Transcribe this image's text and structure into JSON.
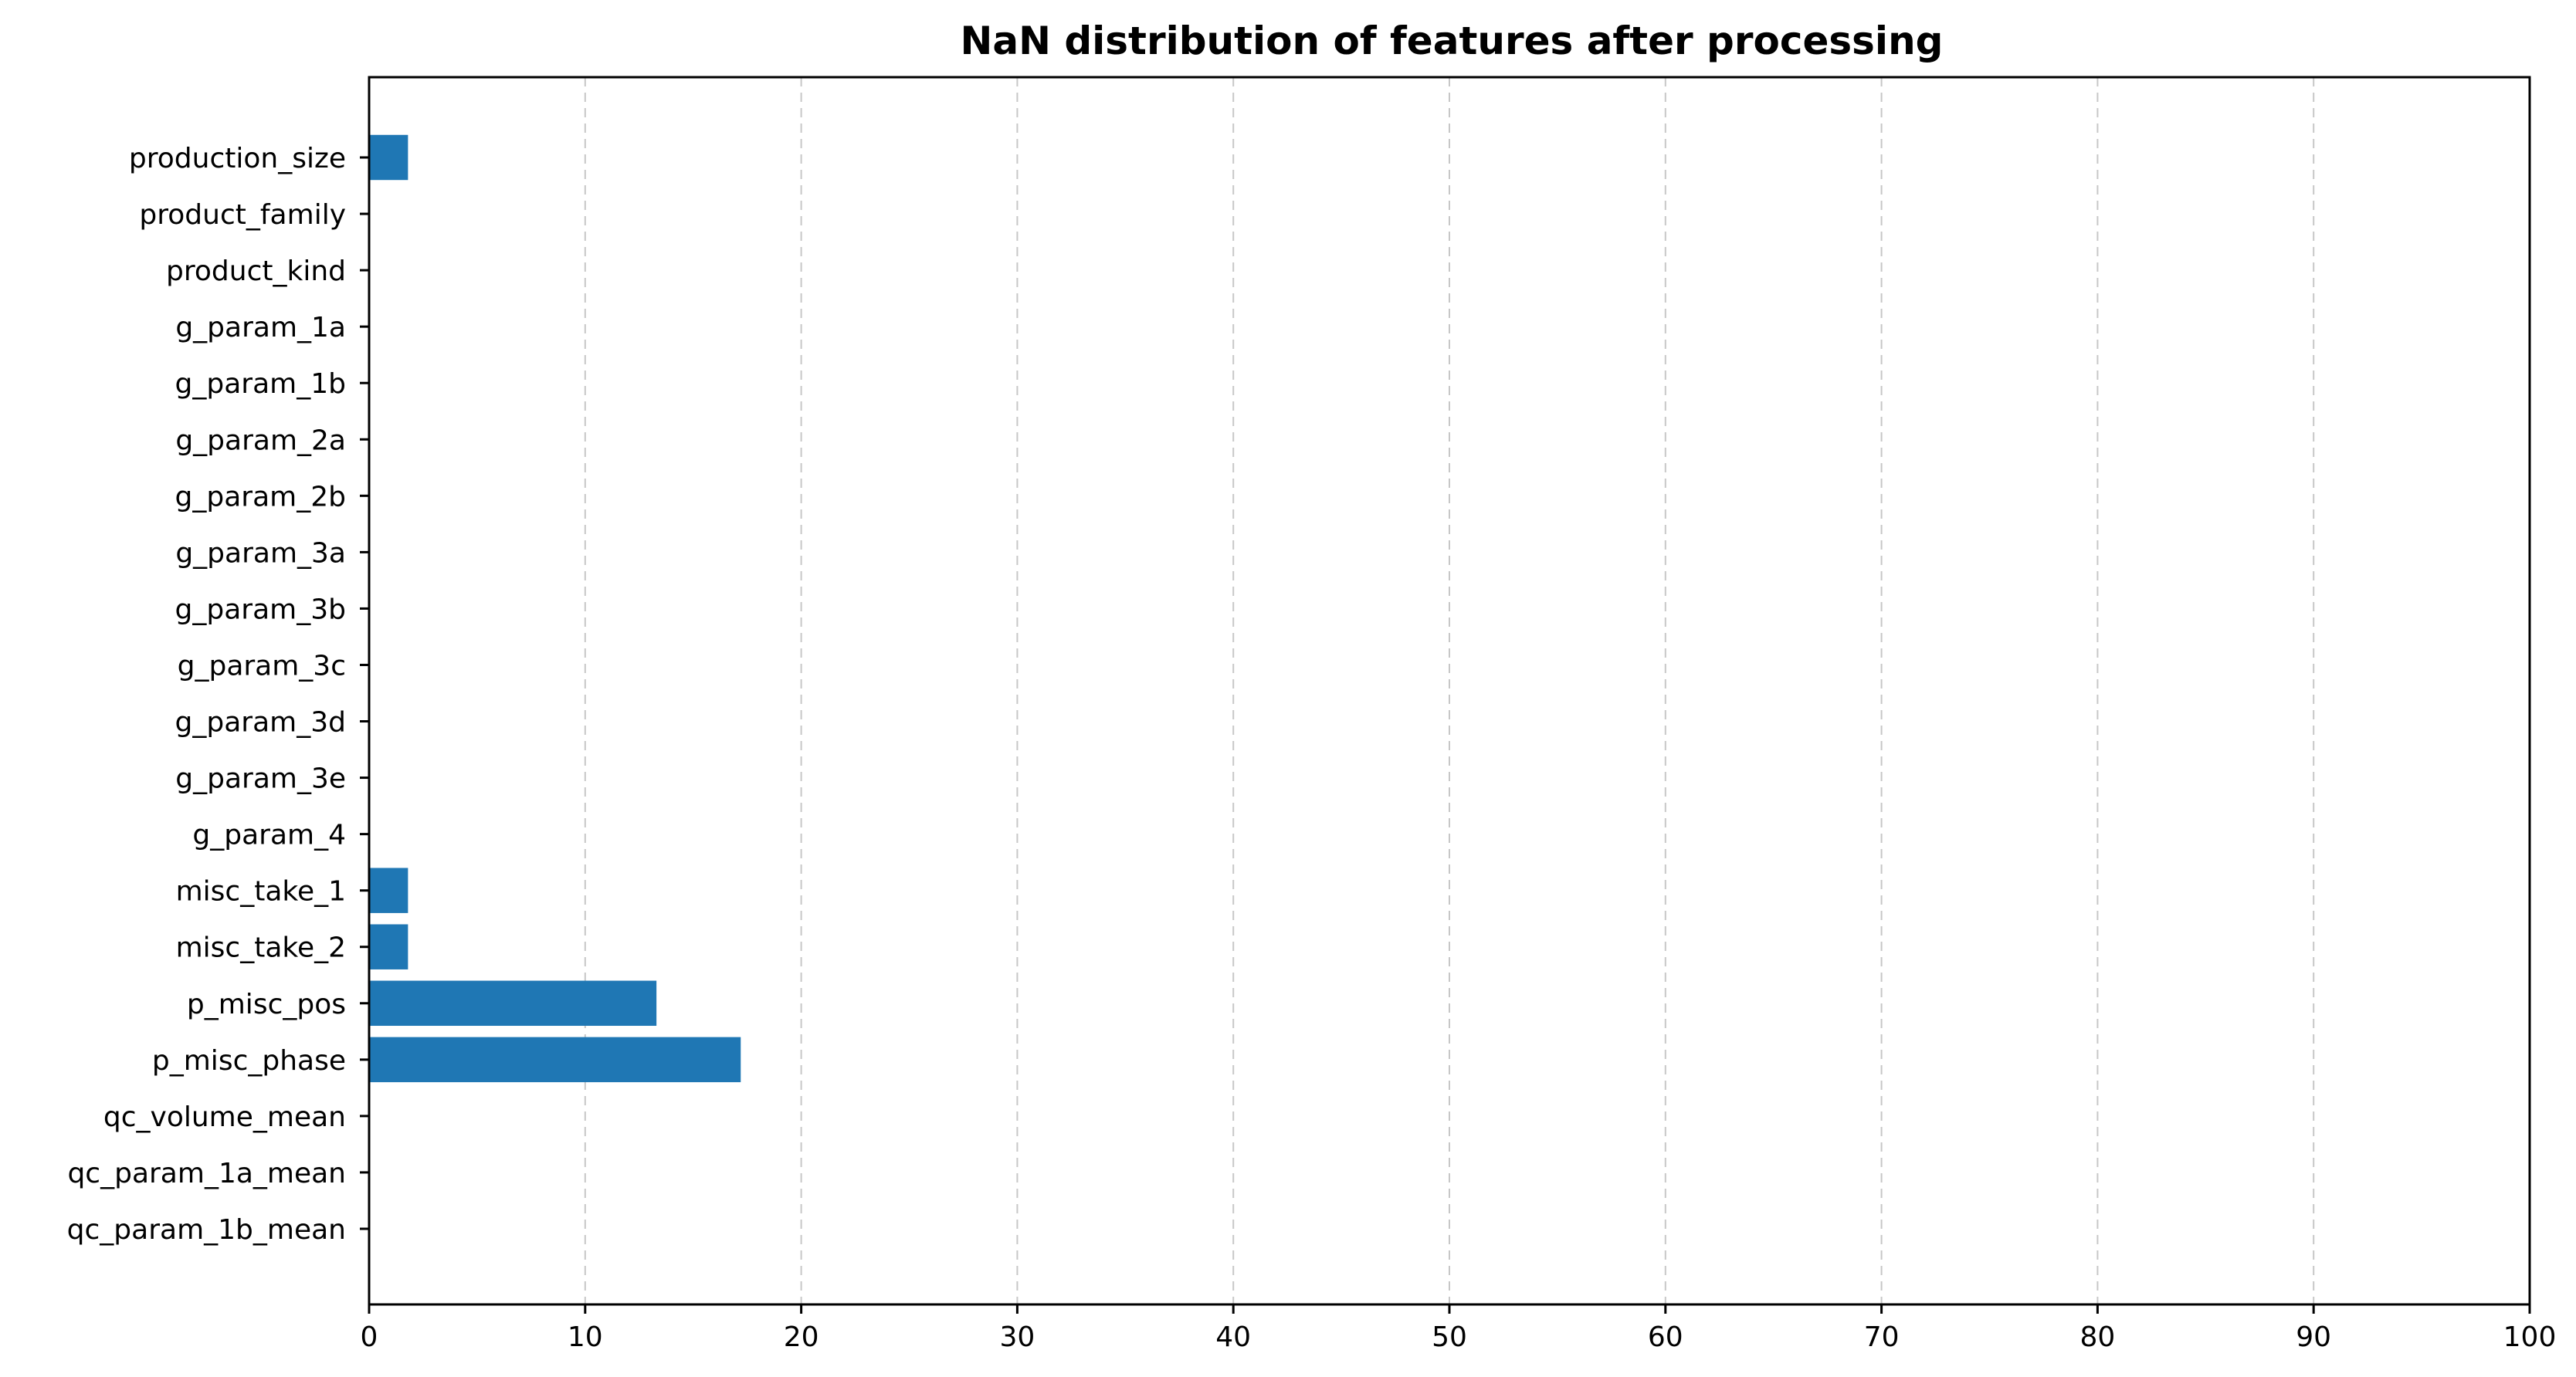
{
  "chart_data": {
    "type": "bar",
    "orientation": "horizontal",
    "title": "NaN distribution of features after processing",
    "xlabel": "",
    "ylabel": "",
    "xlim": [
      0,
      100
    ],
    "xticks": [
      0,
      10,
      20,
      30,
      40,
      50,
      60,
      70,
      80,
      90,
      100
    ],
    "grid": "x-dashed",
    "bar_color": "#1f77b4",
    "categories": [
      "production_size",
      "product_family",
      "product_kind",
      "g_param_1a",
      "g_param_1b",
      "g_param_2a",
      "g_param_2b",
      "g_param_3a",
      "g_param_3b",
      "g_param_3c",
      "g_param_3d",
      "g_param_3e",
      "g_param_4",
      "misc_take_1",
      "misc_take_2",
      "p_misc_pos",
      "p_misc_phase",
      "qc_volume_mean",
      "qc_param_1a_mean",
      "qc_param_1b_mean"
    ],
    "values": [
      1.8,
      0,
      0,
      0,
      0,
      0,
      0,
      0,
      0,
      0,
      0,
      0,
      0,
      1.8,
      1.8,
      13.3,
      17.2,
      0,
      0,
      0
    ]
  }
}
